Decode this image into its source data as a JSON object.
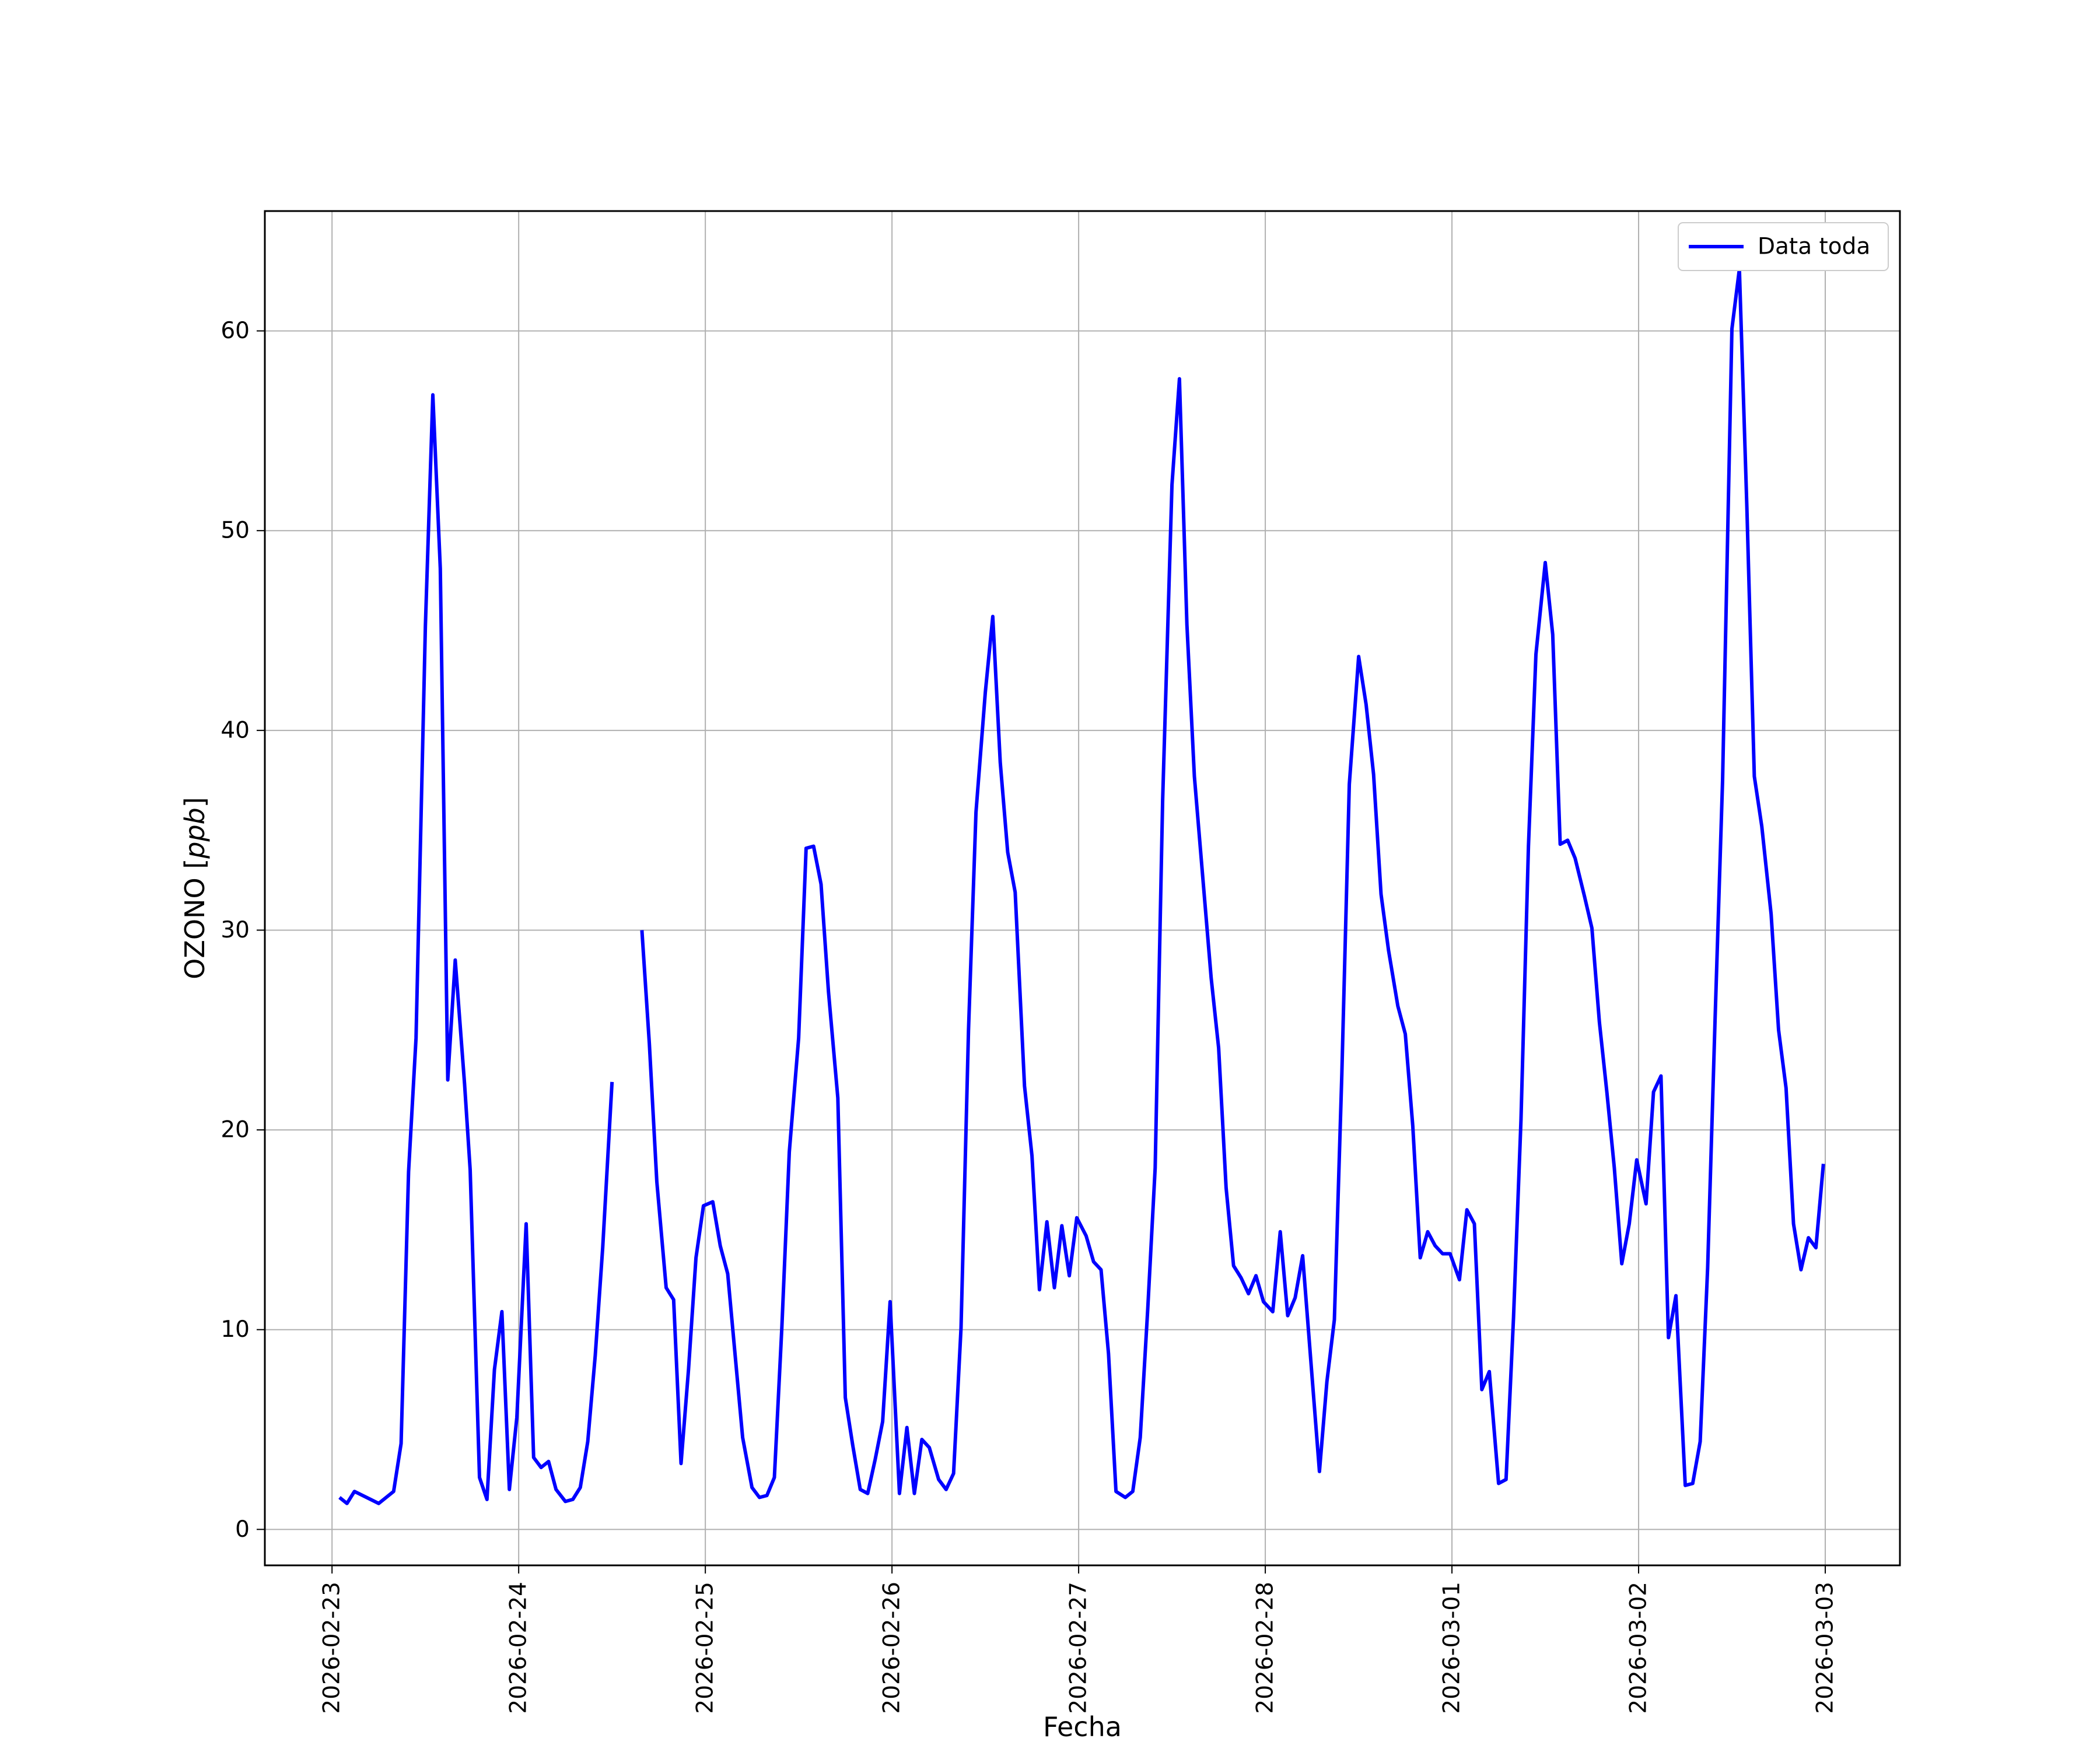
{
  "chart_data": {
    "type": "line",
    "title": "",
    "xlabel": "Fecha",
    "ylabel_prefix": "OZONO [",
    "ylabel_unit": "ppb",
    "ylabel_suffix": "]",
    "x_unit": "days since 2026-02-23",
    "xlim": [
      -0.36,
      8.4
    ],
    "ylim": [
      -1.8,
      66
    ],
    "xticks": [
      {
        "value": 0,
        "label": "2026-02-23"
      },
      {
        "value": 1,
        "label": "2026-02-24"
      },
      {
        "value": 2,
        "label": "2026-02-25"
      },
      {
        "value": 3,
        "label": "2026-02-26"
      },
      {
        "value": 4,
        "label": "2026-02-27"
      },
      {
        "value": 5,
        "label": "2026-02-28"
      },
      {
        "value": 6,
        "label": "2026-03-01"
      },
      {
        "value": 7,
        "label": "2026-03-02"
      },
      {
        "value": 8,
        "label": "2026-03-03"
      }
    ],
    "yticks": [
      {
        "value": 0,
        "label": "0"
      },
      {
        "value": 10,
        "label": "10"
      },
      {
        "value": 20,
        "label": "20"
      },
      {
        "value": 30,
        "label": "30"
      },
      {
        "value": 40,
        "label": "40"
      },
      {
        "value": 50,
        "label": "50"
      },
      {
        "value": 60,
        "label": "60"
      }
    ],
    "grid": true,
    "legend_position": "top-right",
    "series": [
      {
        "name": "Data toda",
        "color": "#0000ff",
        "segments": [
          [
            [
              0.04,
              1.6
            ],
            [
              0.08,
              1.3
            ],
            [
              0.12,
              1.9
            ],
            [
              0.25,
              1.3
            ],
            [
              0.33,
              1.9
            ],
            [
              0.37,
              4.3
            ],
            [
              0.41,
              17.9
            ],
            [
              0.45,
              24.6
            ],
            [
              0.5,
              45.2
            ],
            [
              0.54,
              56.8
            ],
            [
              0.58,
              48.1
            ],
            [
              0.62,
              22.5
            ],
            [
              0.66,
              28.5
            ],
            [
              0.71,
              22.3
            ],
            [
              0.74,
              18.0
            ],
            [
              0.79,
              2.6
            ],
            [
              0.83,
              1.5
            ],
            [
              0.87,
              8.0
            ],
            [
              0.91,
              10.9
            ],
            [
              0.95,
              2.0
            ],
            [
              0.99,
              5.6
            ],
            [
              1.04,
              15.3
            ],
            [
              1.08,
              3.6
            ],
            [
              1.12,
              3.1
            ],
            [
              1.16,
              3.4
            ],
            [
              1.2,
              2.0
            ],
            [
              1.25,
              1.4
            ],
            [
              1.29,
              1.5
            ],
            [
              1.33,
              2.1
            ],
            [
              1.37,
              4.4
            ],
            [
              1.41,
              8.7
            ],
            [
              1.45,
              14.1
            ],
            [
              1.5,
              22.4
            ]
          ],
          [
            [
              1.66,
              30.0
            ],
            [
              1.7,
              24.3
            ],
            [
              1.74,
              17.4
            ],
            [
              1.79,
              12.1
            ],
            [
              1.83,
              11.5
            ],
            [
              1.87,
              3.3
            ],
            [
              1.91,
              8.0
            ],
            [
              1.95,
              13.6
            ],
            [
              1.99,
              16.2
            ],
            [
              2.04,
              16.4
            ],
            [
              2.08,
              14.2
            ],
            [
              2.12,
              12.8
            ],
            [
              2.16,
              8.7
            ],
            [
              2.2,
              4.6
            ],
            [
              2.25,
              2.1
            ],
            [
              2.29,
              1.6
            ],
            [
              2.33,
              1.7
            ],
            [
              2.37,
              2.6
            ],
            [
              2.41,
              10.1
            ],
            [
              2.45,
              18.9
            ],
            [
              2.5,
              24.6
            ],
            [
              2.54,
              34.1
            ],
            [
              2.58,
              34.2
            ],
            [
              2.62,
              32.3
            ],
            [
              2.66,
              26.9
            ],
            [
              2.71,
              21.6
            ],
            [
              2.75,
              6.6
            ],
            [
              2.79,
              4.2
            ],
            [
              2.83,
              2.0
            ],
            [
              2.87,
              1.8
            ],
            [
              2.91,
              3.5
            ],
            [
              2.95,
              5.4
            ],
            [
              2.99,
              11.4
            ],
            [
              3.04,
              1.8
            ],
            [
              3.08,
              5.1
            ],
            [
              3.12,
              1.8
            ],
            [
              3.16,
              4.5
            ],
            [
              3.2,
              4.1
            ],
            [
              3.25,
              2.5
            ],
            [
              3.29,
              2.0
            ],
            [
              3.33,
              2.8
            ],
            [
              3.37,
              10.1
            ],
            [
              3.41,
              25.0
            ],
            [
              3.45,
              35.9
            ],
            [
              3.5,
              41.9
            ],
            [
              3.54,
              45.7
            ],
            [
              3.58,
              38.4
            ],
            [
              3.62,
              33.9
            ],
            [
              3.66,
              31.9
            ],
            [
              3.71,
              22.2
            ],
            [
              3.75,
              18.7
            ],
            [
              3.79,
              12.0
            ],
            [
              3.83,
              15.4
            ],
            [
              3.87,
              12.1
            ],
            [
              3.91,
              15.2
            ],
            [
              3.95,
              12.7
            ],
            [
              3.99,
              15.6
            ],
            [
              4.04,
              14.7
            ],
            [
              4.08,
              13.4
            ],
            [
              4.12,
              13.0
            ],
            [
              4.16,
              8.8
            ],
            [
              4.2,
              1.9
            ],
            [
              4.25,
              1.6
            ],
            [
              4.29,
              1.9
            ],
            [
              4.33,
              4.6
            ],
            [
              4.37,
              11.0
            ],
            [
              4.41,
              18.1
            ],
            [
              4.45,
              36.5
            ],
            [
              4.5,
              52.3
            ],
            [
              4.54,
              57.6
            ],
            [
              4.58,
              45.3
            ],
            [
              4.62,
              37.7
            ],
            [
              4.66,
              33.2
            ],
            [
              4.71,
              27.6
            ],
            [
              4.75,
              24.1
            ],
            [
              4.79,
              17.1
            ],
            [
              4.83,
              13.2
            ],
            [
              4.87,
              12.6
            ],
            [
              4.91,
              11.8
            ],
            [
              4.95,
              12.7
            ],
            [
              4.99,
              11.4
            ],
            [
              5.04,
              10.9
            ],
            [
              5.08,
              14.9
            ],
            [
              5.12,
              10.7
            ],
            [
              5.16,
              11.6
            ],
            [
              5.2,
              13.7
            ],
            [
              5.25,
              7.7
            ],
            [
              5.29,
              2.9
            ],
            [
              5.33,
              7.4
            ],
            [
              5.37,
              10.5
            ],
            [
              5.41,
              22.8
            ],
            [
              5.45,
              37.3
            ],
            [
              5.5,
              43.7
            ],
            [
              5.54,
              41.3
            ],
            [
              5.58,
              37.8
            ],
            [
              5.62,
              31.8
            ],
            [
              5.66,
              29.0
            ],
            [
              5.71,
              26.2
            ],
            [
              5.75,
              24.8
            ],
            [
              5.79,
              20.2
            ],
            [
              5.83,
              13.6
            ],
            [
              5.87,
              14.9
            ],
            [
              5.91,
              14.2
            ],
            [
              5.95,
              13.8
            ],
            [
              5.99,
              13.8
            ],
            [
              6.04,
              12.5
            ],
            [
              6.08,
              16.0
            ],
            [
              6.12,
              15.3
            ],
            [
              6.16,
              7.0
            ],
            [
              6.2,
              7.9
            ],
            [
              6.25,
              2.3
            ],
            [
              6.29,
              2.5
            ],
            [
              6.33,
              10.6
            ],
            [
              6.37,
              20.5
            ],
            [
              6.41,
              34.2
            ],
            [
              6.45,
              43.8
            ],
            [
              6.5,
              48.4
            ],
            [
              6.54,
              44.8
            ],
            [
              6.58,
              34.3
            ],
            [
              6.62,
              34.5
            ],
            [
              6.66,
              33.6
            ],
            [
              6.71,
              31.7
            ],
            [
              6.75,
              30.1
            ],
            [
              6.79,
              25.4
            ],
            [
              6.83,
              21.9
            ],
            [
              6.87,
              18.1
            ],
            [
              6.91,
              13.3
            ],
            [
              6.95,
              15.3
            ],
            [
              6.99,
              18.5
            ],
            [
              7.04,
              16.3
            ],
            [
              7.08,
              21.9
            ],
            [
              7.12,
              22.7
            ],
            [
              7.16,
              9.6
            ],
            [
              7.2,
              11.7
            ],
            [
              7.25,
              2.2
            ],
            [
              7.29,
              2.3
            ],
            [
              7.33,
              4.4
            ],
            [
              7.37,
              13.1
            ],
            [
              7.41,
              25.6
            ],
            [
              7.45,
              37.5
            ],
            [
              7.5,
              60.1
            ],
            [
              7.54,
              63.1
            ],
            [
              7.58,
              51.2
            ],
            [
              7.62,
              37.7
            ],
            [
              7.66,
              35.2
            ],
            [
              7.71,
              30.8
            ],
            [
              7.75,
              25.0
            ],
            [
              7.79,
              22.1
            ],
            [
              7.83,
              15.3
            ],
            [
              7.87,
              13.0
            ],
            [
              7.91,
              14.6
            ],
            [
              7.95,
              14.1
            ],
            [
              7.99,
              18.3
            ]
          ]
        ]
      }
    ]
  }
}
